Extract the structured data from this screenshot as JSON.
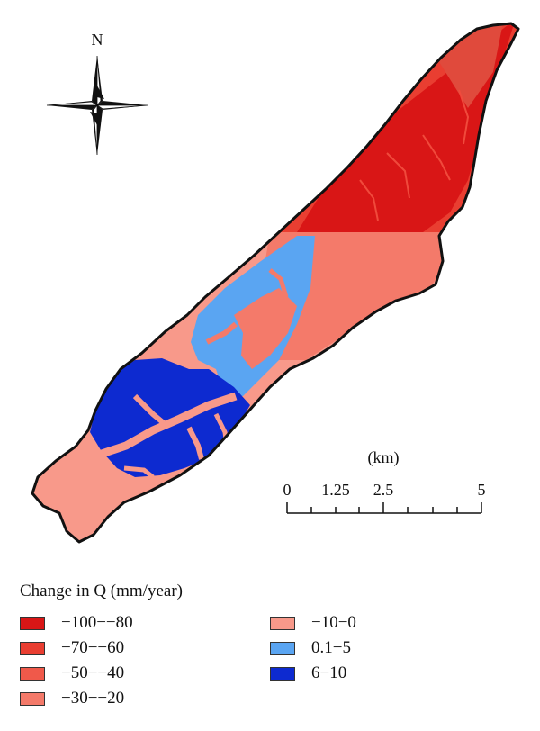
{
  "map": {
    "north_label": "N",
    "scale": {
      "unit_label": "(km)",
      "tick_labels": [
        "0",
        "1.25",
        "2.5",
        "5"
      ]
    },
    "colors": {
      "outline": "#111111",
      "dark_red": "#d91616",
      "mid_red": "#e93e31",
      "light_red": "#f47a6a",
      "salmon": "#f8998a",
      "light_blue": "#5aa5f2",
      "dark_blue": "#0d2ad0"
    }
  },
  "legend": {
    "title": "Change in Q (mm/year)",
    "items": [
      {
        "label": "−100−−80",
        "color": "#d91616"
      },
      {
        "label": "−70−−60",
        "color": "#e93e31"
      },
      {
        "label": "−50−−40",
        "color": "#f0594a"
      },
      {
        "label": "−30−−20",
        "color": "#f47a6a"
      },
      {
        "label": "−10−0",
        "color": "#f8998a"
      },
      {
        "label": "0.1−5",
        "color": "#5aa5f2"
      },
      {
        "label": "6−10",
        "color": "#0d2ad0"
      }
    ]
  }
}
